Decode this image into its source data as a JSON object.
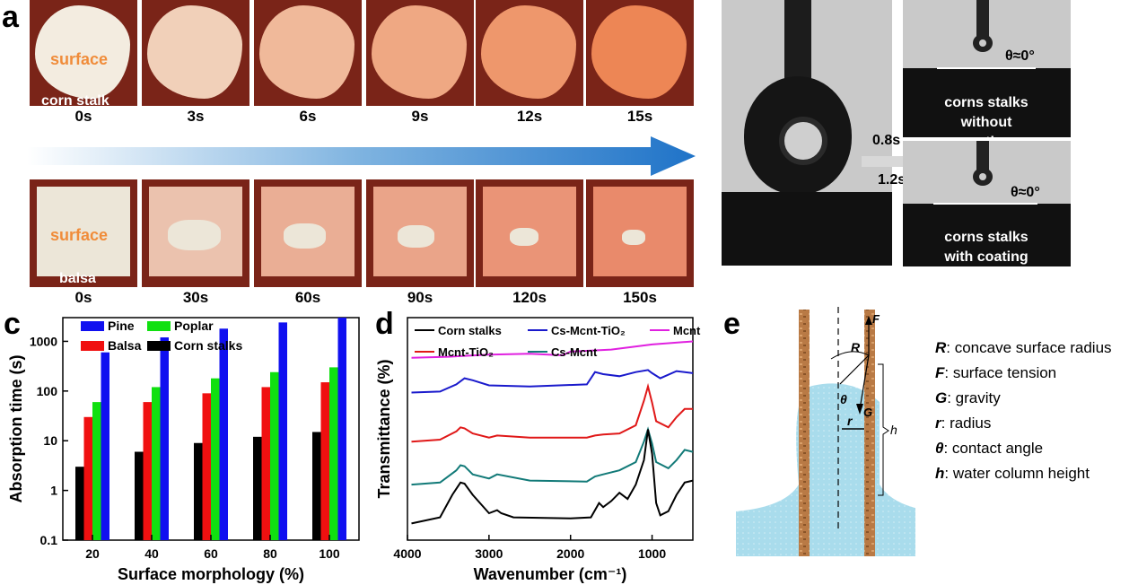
{
  "panel_a": {
    "letter": "a",
    "corn_label": "corn stalk",
    "surface_label": "surface",
    "balsa_label": "balsa",
    "corn_times": [
      "0s",
      "3s",
      "6s",
      "9s",
      "12s",
      "15s"
    ],
    "balsa_times": [
      "0s",
      "30s",
      "60s",
      "90s",
      "120s",
      "150s"
    ],
    "corn_stain_levels": [
      0,
      0.25,
      0.45,
      0.6,
      0.75,
      0.9
    ],
    "balsa_stain_levels": [
      0,
      0.35,
      0.55,
      0.65,
      0.8,
      0.9
    ]
  },
  "panel_b": {
    "letter": "b",
    "time_top": "0.8s",
    "time_bottom": "1.2s",
    "theta_top": "θ≈0°",
    "theta_bottom": "θ≈0°",
    "caption_top_line1": "corns stalks",
    "caption_top_line2": "without coating",
    "caption_bottom_line1": "corns stalks",
    "caption_bottom_line2": "with coating"
  },
  "panel_c": {
    "letter": "c",
    "colors": {
      "Pine": "#1010f0",
      "Poplar": "#10e010",
      "Balsa": "#f01010",
      "Corn stalks": "#000000"
    }
  },
  "panel_d": {
    "letter": "d",
    "colors": {
      "Corn stalks": "#000000",
      "Cs-Mcnt-TiO2": "#1a1acc",
      "Mcnt": "#e020e0",
      "Mcnt-TiO2": "#e01818",
      "Cs-Mcnt": "#127a78"
    }
  },
  "panel_e": {
    "letter": "e",
    "diagram_labels": {
      "R": "R",
      "F": "F",
      "theta": "θ",
      "G": "G",
      "r": "r",
      "h": "h"
    },
    "legend": [
      {
        "sym": "R",
        "text": ": concave surface radius"
      },
      {
        "sym": "F",
        "text": ": surface tension"
      },
      {
        "sym": "G",
        "text": ": gravity"
      },
      {
        "sym": "r",
        "text": ":  radius"
      },
      {
        "sym": "θ",
        "text": ": contact angle"
      },
      {
        "sym": "h",
        "text": ": water column height"
      }
    ]
  },
  "chart_data": [
    {
      "type": "bar",
      "panel": "c",
      "categories": [
        "20",
        "40",
        "60",
        "80",
        "100"
      ],
      "series": [
        {
          "name": "Corn stalks",
          "values": [
            3,
            6,
            9,
            12,
            15
          ]
        },
        {
          "name": "Balsa",
          "values": [
            30,
            60,
            90,
            120,
            150
          ]
        },
        {
          "name": "Poplar",
          "values": [
            60,
            120,
            180,
            240,
            300
          ]
        },
        {
          "name": "Pine",
          "values": [
            600,
            1200,
            1800,
            2400,
            3000
          ]
        }
      ],
      "legend_order": [
        "Pine",
        "Poplar",
        "Balsa",
        "Corn stalks"
      ],
      "xlabel": "Surface morphology (%)",
      "ylabel": "Absorption time (s)",
      "yscale": "log",
      "ylim": [
        0.1,
        3000
      ],
      "yticks": [
        "0.1",
        "1",
        "10",
        "100",
        "1000"
      ],
      "legend_position": "top-left"
    },
    {
      "type": "line",
      "panel": "d",
      "xlabel": "Wavenumber (cm⁻¹)",
      "ylabel": "Transmittance (%)",
      "xlim": [
        4000,
        500
      ],
      "xticks": [
        "4000",
        "3000",
        "2000",
        "1000"
      ],
      "legend_position": "top",
      "series": [
        {
          "name": "Mcnt",
          "label_html": "Mcnt",
          "x": [
            3950,
            3500,
            3000,
            2500,
            2100,
            2000,
            1500,
            1000,
            500
          ],
          "y": [
            8.3,
            8.35,
            8.45,
            8.5,
            8.42,
            8.6,
            8.7,
            8.95,
            9.1
          ]
        },
        {
          "name": "Cs-Mcnt-TiO2",
          "label_html": "Cs-Mcnt-TiO₂",
          "x": [
            3950,
            3600,
            3400,
            3300,
            3200,
            3000,
            2500,
            1800,
            1700,
            1600,
            1400,
            1200,
            1050,
            1000,
            900,
            700,
            500
          ],
          "y": [
            6.6,
            6.65,
            7.0,
            7.3,
            7.2,
            6.95,
            6.9,
            7.0,
            7.6,
            7.5,
            7.4,
            7.6,
            7.7,
            7.55,
            7.3,
            7.65,
            7.55
          ]
        },
        {
          "name": "Mcnt-TiO2",
          "label_html": "Mcnt-TiO₂",
          "x": [
            3950,
            3600,
            3400,
            3350,
            3300,
            3200,
            3000,
            2900,
            2500,
            1800,
            1700,
            1600,
            1400,
            1200,
            1100,
            1050,
            1000,
            950,
            800,
            700,
            600,
            500
          ],
          "y": [
            4.2,
            4.3,
            4.7,
            4.9,
            4.85,
            4.6,
            4.4,
            4.5,
            4.4,
            4.4,
            4.5,
            4.55,
            4.6,
            5.0,
            6.2,
            6.9,
            6.1,
            5.2,
            4.9,
            5.4,
            5.8,
            5.8
          ]
        },
        {
          "name": "Cs-Mcnt",
          "label_html": "Cs-Mcnt",
          "x": [
            3950,
            3600,
            3400,
            3350,
            3300,
            3200,
            3000,
            2900,
            2500,
            1800,
            1700,
            1600,
            1400,
            1200,
            1100,
            1050,
            1000,
            950,
            800,
            700,
            600,
            500
          ],
          "y": [
            2.1,
            2.2,
            2.8,
            3.05,
            3.0,
            2.6,
            2.4,
            2.6,
            2.3,
            2.25,
            2.5,
            2.6,
            2.8,
            3.2,
            4.2,
            4.8,
            4.1,
            3.2,
            2.9,
            3.3,
            3.8,
            3.7
          ]
        },
        {
          "name": "Corn stalks",
          "label_html": "Corn stalks",
          "x": [
            3950,
            3600,
            3450,
            3350,
            3300,
            3200,
            3000,
            2900,
            2850,
            2700,
            2000,
            1750,
            1650,
            1600,
            1500,
            1400,
            1300,
            1200,
            1100,
            1050,
            1000,
            950,
            900,
            800,
            700,
            600,
            500
          ],
          "y": [
            0.2,
            0.5,
            1.6,
            2.2,
            2.15,
            1.6,
            0.7,
            0.85,
            0.7,
            0.5,
            0.45,
            0.5,
            1.2,
            1.0,
            1.3,
            1.7,
            1.4,
            2.1,
            3.3,
            4.8,
            3.6,
            1.2,
            0.6,
            0.8,
            1.6,
            2.2,
            2.3
          ]
        }
      ]
    }
  ]
}
